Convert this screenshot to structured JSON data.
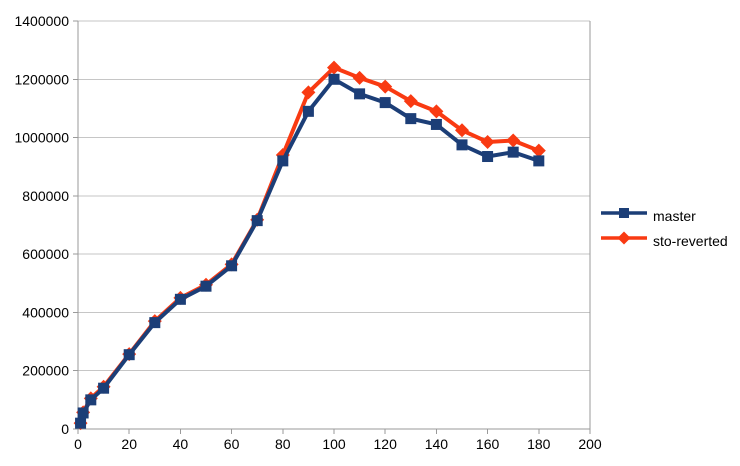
{
  "chart_data": {
    "type": "line",
    "title": "",
    "xlabel": "",
    "ylabel": "",
    "xlim": [
      0,
      200
    ],
    "ylim": [
      0,
      1400000
    ],
    "xticks": [
      0,
      20,
      40,
      60,
      80,
      100,
      120,
      140,
      160,
      180,
      200
    ],
    "yticks": [
      0,
      200000,
      400000,
      600000,
      800000,
      1000000,
      1200000,
      1400000
    ],
    "grid": "horizontal-only",
    "legend_position": "right",
    "x": [
      1,
      2,
      5,
      10,
      20,
      30,
      40,
      50,
      60,
      70,
      80,
      90,
      100,
      110,
      120,
      130,
      140,
      150,
      160,
      170,
      180
    ],
    "series": [
      {
        "name": "master",
        "marker": "square",
        "color": "#1C3E77",
        "values": [
          20000,
          55000,
          100000,
          140000,
          255000,
          365000,
          445000,
          490000,
          560000,
          715000,
          920000,
          1090000,
          1200000,
          1150000,
          1120000,
          1065000,
          1045000,
          975000,
          935000,
          950000,
          920000
        ]
      },
      {
        "name": "sto-reverted",
        "marker": "diamond",
        "color": "#F93A12",
        "values": [
          20000,
          57000,
          105000,
          145000,
          257000,
          370000,
          450000,
          495000,
          565000,
          718000,
          940000,
          1155000,
          1240000,
          1205000,
          1175000,
          1125000,
          1090000,
          1025000,
          985000,
          990000,
          955000
        ]
      }
    ],
    "colors": {
      "background": "#FFFFFF",
      "gridline": "#C6C6C6",
      "axis": "#9A9A9A",
      "tick_label": "#000000"
    }
  }
}
